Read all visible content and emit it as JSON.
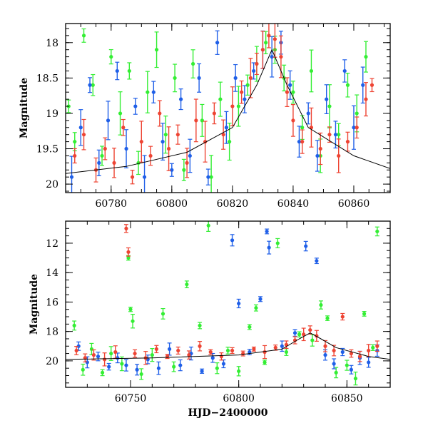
{
  "chart_data": [
    {
      "type": "scatter",
      "panel": "top",
      "title": "",
      "xlabel": "",
      "ylabel": "Magnitude",
      "xlim": [
        60765,
        60872
      ],
      "ylim": [
        20.12,
        17.73
      ],
      "y_inverted": true,
      "x_ticks": [
        60780,
        60800,
        60820,
        60840,
        60860
      ],
      "x_tick_labels": [
        "60780",
        "60800",
        "60820",
        "60840",
        "60860"
      ],
      "y_ticks": [
        18,
        18.5,
        19,
        19.5,
        20
      ],
      "y_tick_labels": [
        "18",
        "18.5",
        "19",
        "19.5",
        "20"
      ],
      "model_curve": {
        "x": [
          60765,
          60785,
          60805,
          60820,
          60828,
          60833,
          60838,
          60845,
          60860,
          60872
        ],
        "y": [
          19.85,
          19.75,
          19.55,
          19.2,
          18.6,
          18.1,
          18.6,
          19.2,
          19.6,
          19.78
        ]
      },
      "series": [
        {
          "color": "#33ee33",
          "points": [
            [
              60766,
              18.9
            ],
            [
              60768,
              19.4
            ],
            [
              60771,
              17.9
            ],
            [
              60774,
              18.6
            ],
            [
              60777,
              19.6
            ],
            [
              60780,
              18.2
            ],
            [
              60783,
              19.0
            ],
            [
              60786,
              18.4
            ],
            [
              60789,
              19.7
            ],
            [
              60792,
              18.7
            ],
            [
              60795,
              18.1
            ],
            [
              60798,
              19.3
            ],
            [
              60801,
              18.5
            ],
            [
              60804,
              19.8
            ],
            [
              60807,
              18.3
            ],
            [
              60810,
              19.1
            ],
            [
              60813,
              19.9
            ],
            [
              60816,
              18.8
            ],
            [
              60819,
              19.4
            ],
            [
              60822,
              18.9
            ],
            [
              60825,
              18.6
            ],
            [
              60828,
              18.3
            ],
            [
              60831,
              18.0
            ],
            [
              60834,
              18.1
            ],
            [
              60837,
              18.5
            ],
            [
              60840,
              18.7
            ],
            [
              60843,
              19.2
            ],
            [
              60846,
              18.4
            ],
            [
              60849,
              19.6
            ],
            [
              60852,
              18.9
            ],
            [
              60855,
              19.3
            ],
            [
              60858,
              18.6
            ],
            [
              60861,
              19.0
            ],
            [
              60864,
              18.2
            ]
          ]
        },
        {
          "color": "#1f5fe8",
          "points": [
            [
              60767,
              19.9
            ],
            [
              60770,
              19.2
            ],
            [
              60773,
              18.6
            ],
            [
              60776,
              19.7
            ],
            [
              60779,
              19.1
            ],
            [
              60782,
              18.4
            ],
            [
              60785,
              19.5
            ],
            [
              60788,
              18.9
            ],
            [
              60791,
              19.9
            ],
            [
              60794,
              18.7
            ],
            [
              60797,
              19.4
            ],
            [
              60800,
              19.8
            ],
            [
              60803,
              18.8
            ],
            [
              60806,
              19.6
            ],
            [
              60809,
              18.5
            ],
            [
              60812,
              19.9
            ],
            [
              60815,
              18.0
            ],
            [
              60818,
              19.2
            ],
            [
              60821,
              18.5
            ],
            [
              60824,
              18.8
            ],
            [
              60827,
              18.4
            ],
            [
              60830,
              18.1
            ],
            [
              60833,
              18.2
            ],
            [
              60836,
              18.0
            ],
            [
              60839,
              18.6
            ],
            [
              60842,
              19.4
            ],
            [
              60845,
              19.0
            ],
            [
              60848,
              19.6
            ],
            [
              60851,
              18.8
            ],
            [
              60854,
              19.3
            ],
            [
              60857,
              18.4
            ],
            [
              60860,
              19.2
            ],
            [
              60863,
              18.6
            ]
          ]
        },
        {
          "color": "#ee4433",
          "points": [
            [
              60768,
              19.6
            ],
            [
              60771,
              19.3
            ],
            [
              60775,
              19.8
            ],
            [
              60778,
              19.5
            ],
            [
              60781,
              19.7
            ],
            [
              60784,
              19.2
            ],
            [
              60787,
              19.9
            ],
            [
              60790,
              19.4
            ],
            [
              60793,
              19.6
            ],
            [
              60796,
              19.0
            ],
            [
              60799,
              19.5
            ],
            [
              60802,
              19.3
            ],
            [
              60805,
              19.7
            ],
            [
              60808,
              19.1
            ],
            [
              60811,
              19.4
            ],
            [
              60814,
              19.0
            ],
            [
              60817,
              19.3
            ],
            [
              60820,
              18.9
            ],
            [
              60823,
              18.7
            ],
            [
              60826,
              18.5
            ],
            [
              60828,
              18.3
            ],
            [
              60830,
              18.1
            ],
            [
              60832,
              17.9
            ],
            [
              60834,
              17.95
            ],
            [
              60836,
              18.2
            ],
            [
              60838,
              18.7
            ],
            [
              60840,
              19.1
            ],
            [
              60843,
              19.4
            ],
            [
              60846,
              19.2
            ],
            [
              60849,
              19.5
            ],
            [
              60852,
              19.3
            ],
            [
              60855,
              19.6
            ],
            [
              60858,
              19.4
            ],
            [
              60861,
              19.2
            ],
            [
              60864,
              18.8
            ],
            [
              60866,
              18.6
            ]
          ]
        }
      ]
    },
    {
      "type": "scatter",
      "panel": "bottom",
      "title": "",
      "xlabel": "HJD−2400000",
      "ylabel": "Magnitude",
      "xlim": [
        60720,
        60870
      ],
      "ylim": [
        21.8,
        10.5
      ],
      "y_inverted": true,
      "x_ticks": [
        60750,
        60800,
        60850
      ],
      "x_tick_labels": [
        "60750",
        "60800",
        "60850"
      ],
      "y_ticks": [
        12,
        14,
        16,
        18,
        20
      ],
      "y_tick_labels": [
        "12",
        "14",
        "16",
        "18",
        "20"
      ],
      "model_curve": {
        "x": [
          60720,
          60760,
          60800,
          60820,
          60828,
          60833,
          60838,
          60845,
          60860,
          60870
        ],
        "y": [
          19.9,
          19.8,
          19.6,
          19.2,
          18.5,
          18.1,
          18.5,
          19.1,
          19.7,
          19.9
        ]
      },
      "series": [
        {
          "color": "#33ee33",
          "points": [
            [
              60724,
              17.6
            ],
            [
              60728,
              20.6
            ],
            [
              60732,
              19.2
            ],
            [
              60737,
              20.8
            ],
            [
              60741,
              19.5
            ],
            [
              60746,
              20.2
            ],
            [
              60749,
              13.0
            ],
            [
              60750,
              16.5
            ],
            [
              60751,
              17.3
            ],
            [
              60755,
              20.9
            ],
            [
              60760,
              19.6
            ],
            [
              60765,
              16.8
            ],
            [
              60770,
              20.4
            ],
            [
              60776,
              14.8
            ],
            [
              60782,
              17.6
            ],
            [
              60786,
              10.8
            ],
            [
              60790,
              20.5
            ],
            [
              60795,
              19.3
            ],
            [
              60800,
              20.7
            ],
            [
              60805,
              17.7
            ],
            [
              60808,
              16.4
            ],
            [
              60812,
              20.1
            ],
            [
              60818,
              12.0
            ],
            [
              60822,
              19.4
            ],
            [
              60828,
              18.2
            ],
            [
              60834,
              18.6
            ],
            [
              60838,
              16.2
            ],
            [
              60841,
              17.1
            ],
            [
              60845,
              20.8
            ],
            [
              60850,
              20.3
            ],
            [
              60854,
              21.2
            ],
            [
              60858,
              16.8
            ],
            [
              60862,
              19.1
            ],
            [
              60864,
              11.2
            ]
          ]
        },
        {
          "color": "#1f5fe8",
          "points": [
            [
              60726,
              19.0
            ],
            [
              60730,
              20.1
            ],
            [
              60735,
              19.7
            ],
            [
              60740,
              20.4
            ],
            [
              60744,
              19.8
            ],
            [
              60748,
              20.3
            ],
            [
              60753,
              20.6
            ],
            [
              60758,
              19.9
            ],
            [
              60763,
              20.5
            ],
            [
              60768,
              19.2
            ],
            [
              60773,
              20.3
            ],
            [
              60778,
              19.5
            ],
            [
              60783,
              20.7
            ],
            [
              60788,
              19.8
            ],
            [
              60793,
              20.2
            ],
            [
              60797,
              11.8
            ],
            [
              60800,
              16.1
            ],
            [
              60805,
              19.4
            ],
            [
              60810,
              15.8
            ],
            [
              60813,
              11.2
            ],
            [
              60814,
              12.3
            ],
            [
              60820,
              19.0
            ],
            [
              60826,
              18.1
            ],
            [
              60831,
              12.2
            ],
            [
              60836,
              13.2
            ],
            [
              60840,
              19.6
            ],
            [
              60844,
              20.2
            ],
            [
              60848,
              19.4
            ],
            [
              60852,
              20.6
            ],
            [
              60856,
              19.8
            ],
            [
              60860,
              20.1
            ],
            [
              60864,
              19.3
            ]
          ]
        },
        {
          "color": "#ee4433",
          "points": [
            [
              60725,
              19.3
            ],
            [
              60729,
              19.8
            ],
            [
              60733,
              19.6
            ],
            [
              60738,
              19.9
            ],
            [
              60743,
              19.4
            ],
            [
              60748,
              11.0
            ],
            [
              60749,
              12.6
            ],
            [
              60752,
              19.5
            ],
            [
              60757,
              19.8
            ],
            [
              60762,
              19.2
            ],
            [
              60767,
              19.7
            ],
            [
              60772,
              19.3
            ],
            [
              60777,
              19.6
            ],
            [
              60782,
              19.0
            ],
            [
              60787,
              19.4
            ],
            [
              60792,
              19.7
            ],
            [
              60797,
              19.3
            ],
            [
              60802,
              19.5
            ],
            [
              60807,
              19.2
            ],
            [
              60812,
              19.4
            ],
            [
              60817,
              19.1
            ],
            [
              60822,
              18.9
            ],
            [
              60826,
              18.6
            ],
            [
              60830,
              18.2
            ],
            [
              60833,
              17.9
            ],
            [
              60836,
              18.3
            ],
            [
              60840,
              19.0
            ],
            [
              60844,
              19.3
            ],
            [
              60848,
              17.0
            ],
            [
              60852,
              19.5
            ],
            [
              60856,
              19.7
            ],
            [
              60860,
              19.3
            ],
            [
              60864,
              19.0
            ]
          ]
        }
      ]
    }
  ]
}
